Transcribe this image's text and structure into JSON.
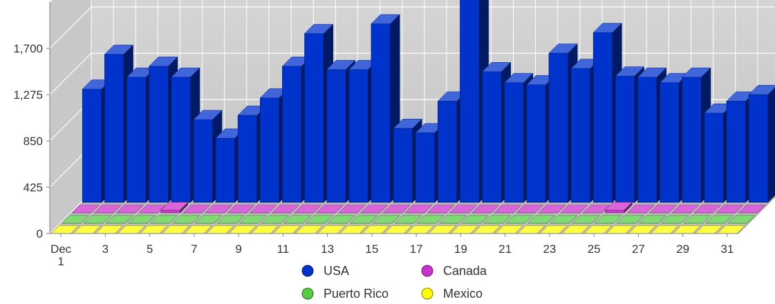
{
  "chart_data": {
    "type": "bar",
    "style": "3d-stacked-depth",
    "title": "",
    "xlabel": "",
    "ylabel": "",
    "ylim": [
      0,
      2125
    ],
    "y_ticks": [
      "0",
      "425",
      "850",
      "1,275",
      "1,700"
    ],
    "x_tick_labels": [
      "Dec\n1",
      "3",
      "5",
      "7",
      "9",
      "11",
      "13",
      "15",
      "17",
      "19",
      "21",
      "23",
      "25",
      "27",
      "29",
      "31"
    ],
    "categories": [
      "1",
      "2",
      "3",
      "4",
      "5",
      "6",
      "7",
      "8",
      "9",
      "10",
      "11",
      "12",
      "13",
      "14",
      "15",
      "16",
      "17",
      "18",
      "19",
      "20",
      "21",
      "22",
      "23",
      "24",
      "25",
      "26",
      "27",
      "28",
      "29",
      "30",
      "31"
    ],
    "grid": true,
    "legend_position": "bottom",
    "series": [
      {
        "name": "USA",
        "color": "#0033cc",
        "values": [
          1040,
          1360,
          1150,
          1250,
          1150,
          760,
          590,
          800,
          960,
          1250,
          1550,
          1220,
          1220,
          1640,
          680,
          640,
          930,
          1890,
          1200,
          1100,
          1080,
          1370,
          1230,
          1560,
          1160,
          1150,
          1100,
          1150,
          820,
          930,
          990
        ]
      },
      {
        "name": "Canada",
        "color": "#cc33cc",
        "values": [
          0,
          0,
          0,
          0,
          25,
          0,
          0,
          0,
          0,
          0,
          0,
          0,
          0,
          0,
          0,
          0,
          0,
          0,
          0,
          0,
          0,
          0,
          0,
          0,
          25,
          0,
          0,
          0,
          0,
          0,
          0
        ]
      },
      {
        "name": "Puerto Rico",
        "color": "#55cc44",
        "values": [
          0,
          0,
          0,
          0,
          0,
          0,
          0,
          0,
          0,
          0,
          0,
          0,
          0,
          0,
          0,
          0,
          0,
          0,
          0,
          0,
          0,
          0,
          0,
          0,
          0,
          0,
          0,
          0,
          0,
          0,
          0
        ]
      },
      {
        "name": "Mexico",
        "color": "#ffff00",
        "values": [
          0,
          0,
          0,
          0,
          0,
          0,
          0,
          0,
          0,
          0,
          0,
          0,
          0,
          0,
          0,
          0,
          0,
          0,
          0,
          0,
          0,
          0,
          0,
          0,
          0,
          0,
          0,
          0,
          0,
          0,
          0
        ]
      }
    ]
  }
}
